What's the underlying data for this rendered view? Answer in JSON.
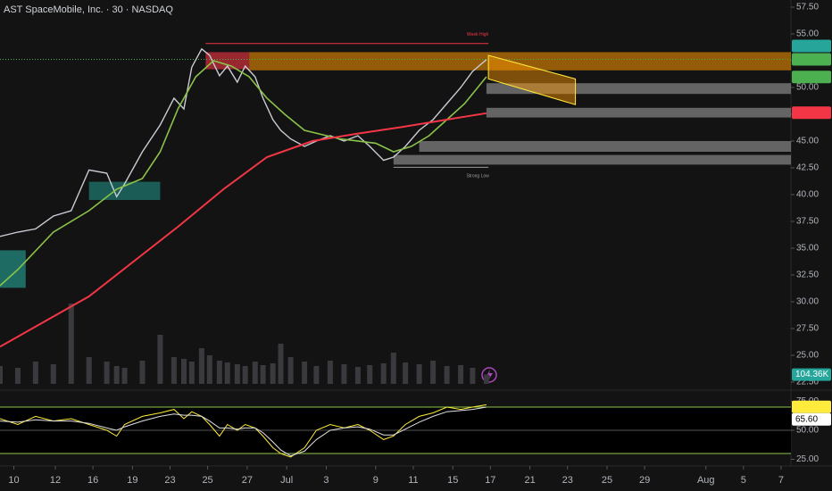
{
  "header": {
    "title": "AST SpaceMobile, Inc. · 30 · NASDAQ"
  },
  "chart_data": {
    "type": "line",
    "xlim": [
      0,
      40
    ],
    "ylim": [
      22.5,
      57.5
    ],
    "grid": false,
    "yticks": [
      {
        "value": 57.5,
        "label": "57.50"
      },
      {
        "value": 55,
        "label": "55.00"
      },
      {
        "value": 52.5,
        "label": "52.50"
      },
      {
        "value": 50,
        "label": "50.00"
      },
      {
        "value": 47.5,
        "label": "47.50"
      },
      {
        "value": 45,
        "label": "45.00"
      },
      {
        "value": 42.5,
        "label": "42.50"
      },
      {
        "value": 40,
        "label": "40.00"
      },
      {
        "value": 37.5,
        "label": "37.50"
      },
      {
        "value": 35,
        "label": "35.00"
      },
      {
        "value": 32.5,
        "label": "32.50"
      },
      {
        "value": 30,
        "label": "30.00"
      },
      {
        "value": 27.5,
        "label": "27.50"
      },
      {
        "value": 25,
        "label": "25.00"
      },
      {
        "value": 22.5,
        "label": "22.50"
      }
    ],
    "xticks": [
      {
        "value": 0.7,
        "label": "10"
      },
      {
        "value": 2.8,
        "label": "12"
      },
      {
        "value": 4.7,
        "label": "16"
      },
      {
        "value": 6.7,
        "label": "19"
      },
      {
        "value": 8.6,
        "label": "23"
      },
      {
        "value": 10.5,
        "label": "25"
      },
      {
        "value": 12.5,
        "label": "27"
      },
      {
        "value": 14.5,
        "label": "Jul"
      },
      {
        "value": 16.5,
        "label": "3"
      },
      {
        "value": 19,
        "label": "9"
      },
      {
        "value": 20.9,
        "label": "11"
      },
      {
        "value": 22.9,
        "label": "15"
      },
      {
        "value": 24.8,
        "label": "17"
      },
      {
        "value": 26.8,
        "label": "21"
      },
      {
        "value": 28.7,
        "label": "23"
      },
      {
        "value": 30.7,
        "label": "25"
      },
      {
        "value": 32.6,
        "label": "29"
      },
      {
        "value": 35.7,
        "label": "Aug"
      },
      {
        "value": 37.6,
        "label": "5"
      },
      {
        "value": 39.5,
        "label": "7"
      }
    ],
    "series": [
      {
        "color": "#c9ccd4",
        "width": 1.4,
        "x": [
          0,
          0.9,
          1.8,
          2.7,
          3.6,
          4.5,
          5.4,
          5.9,
          6.3,
          7.2,
          8.1,
          8.8,
          9.3,
          9.7,
          10.2,
          10.6,
          11.1,
          11.5,
          12.0,
          12.4,
          12.9,
          13.3,
          13.8,
          14.2,
          14.7,
          15.4,
          16.0,
          16.7,
          17.4,
          18.1,
          18.7,
          19.4,
          19.9,
          20.5,
          21.2,
          21.9,
          22.6,
          23.3,
          23.9,
          24.6
        ],
        "values": [
          36.1,
          36.5,
          36.8,
          38,
          38.5,
          42.3,
          42,
          39.8,
          41,
          44,
          46.5,
          49,
          48,
          51.9,
          53.6,
          53,
          51.1,
          52,
          50.5,
          52,
          51,
          49,
          47,
          46,
          45.2,
          44.5,
          45,
          45.5,
          45,
          45.5,
          44.5,
          43.2,
          43.5,
          44.5,
          46,
          47,
          48.5,
          50,
          51.5,
          52.6
        ]
      },
      {
        "color": "#8bc34a",
        "width": 1.6,
        "x": [
          0,
          0.9,
          2.7,
          4.5,
          5.9,
          7.2,
          8.1,
          9.0,
          9.9,
          10.8,
          11.7,
          12.6,
          13.5,
          14.4,
          15.4,
          17.2,
          19.0,
          19.9,
          20.8,
          21.7,
          22.6,
          23.5,
          24.6
        ],
        "values": [
          31.5,
          33,
          36.5,
          38.5,
          40.5,
          41.5,
          44,
          48,
          51,
          52.5,
          52,
          51,
          49,
          47.5,
          46,
          45.2,
          44.8,
          44,
          44.5,
          45.5,
          47,
          48.5,
          51
        ]
      },
      {
        "color": "#f23645",
        "width": 2,
        "x": [
          0,
          4.5,
          9.0,
          11.3,
          13.5,
          15.8,
          18.1,
          20.3,
          22.6,
          24.6
        ],
        "values": [
          25.8,
          30.5,
          37,
          40.5,
          43.5,
          45,
          45.7,
          46.3,
          47,
          47.6
        ]
      }
    ],
    "zones": [
      {
        "low": 51.6,
        "high": 53.3,
        "x0": 12.6,
        "color": "rgba(255,152,0,0.55)"
      },
      {
        "low": 51.7,
        "high": 53.3,
        "x0": 10.4,
        "x1": 12.6,
        "color": "rgba(242,54,69,0.6)"
      },
      {
        "low": 49.4,
        "high": 50.4,
        "x0": 24.6,
        "color": "rgba(200,200,200,0.45)"
      },
      {
        "low": 47.2,
        "high": 48.1,
        "x0": 24.6,
        "color": "rgba(200,200,200,0.45)"
      },
      {
        "low": 44.0,
        "high": 45.0,
        "x0": 21.2,
        "color": "rgba(200,200,200,0.45)"
      },
      {
        "low": 42.8,
        "high": 43.7,
        "x0": 19.9,
        "color": "rgba(200,200,200,0.45)"
      },
      {
        "low": 31.3,
        "high": 34.8,
        "x0": 0,
        "x1": 1.3,
        "color": "rgba(38,166,154,0.6)"
      },
      {
        "low": 39.5,
        "high": 41.2,
        "x0": 4.5,
        "x1": 8.1,
        "color": "rgba(38,166,154,0.5)"
      }
    ],
    "levels": [
      {
        "value": 54.1,
        "x0": 10.4,
        "x1": 24.7,
        "color": "#f23645",
        "text": "Week High",
        "above": true
      },
      {
        "value": 42.55,
        "x0": 19.9,
        "x1": 24.7,
        "color": "#9e9e9e",
        "text": "Strong Low",
        "above": false
      }
    ],
    "current": {
      "value": 52.63,
      "color": "#4caf50"
    },
    "channel": {
      "x": [
        24.7,
        29.1
      ],
      "upper": [
        53,
        50.8
      ],
      "lower": [
        50.8,
        48.4
      ],
      "fill": "rgba(255,152,0,0.45)",
      "stroke": "#ffeb3b"
    },
    "price_labels": [
      {
        "value": 52.63,
        "color": "#4caf50",
        "text_color": "#000"
      },
      {
        "value": 52.63,
        "color": "#26a69a",
        "text_color": "#fff"
      },
      {
        "value": 50.98,
        "color": "#4caf50",
        "text_color": "#000"
      },
      {
        "value": 47.65,
        "color": "#f23645",
        "text_color": "#fff"
      }
    ],
    "volume": {
      "ylim": [
        0,
        1000
      ],
      "color": "#3a3a3e",
      "x": [
        0,
        0.9,
        1.8,
        2.7,
        3.6,
        4.5,
        5.4,
        5.9,
        6.3,
        7.2,
        8.1,
        8.8,
        9.3,
        9.7,
        10.2,
        10.6,
        11.1,
        11.5,
        12.0,
        12.4,
        12.9,
        13.3,
        13.8,
        14.2,
        14.7,
        15.4,
        16.0,
        16.7,
        17.4,
        18.1,
        18.7,
        19.4,
        19.9,
        20.5,
        21.2,
        21.9,
        22.6,
        23.3,
        23.9,
        24.6
      ],
      "values": [
        200,
        180,
        250,
        220,
        900,
        300,
        250,
        200,
        180,
        260,
        550,
        300,
        280,
        250,
        400,
        320,
        260,
        240,
        220,
        200,
        250,
        210,
        230,
        450,
        300,
        250,
        200,
        260,
        220,
        190,
        210,
        230,
        350,
        240,
        220,
        260,
        200,
        210,
        180,
        104.36
      ],
      "last": {
        "value": 104.36,
        "label": "104.36K",
        "color": "#26a69a"
      }
    },
    "rsi": {
      "ylim": [
        20,
        80
      ],
      "yticks": [
        {
          "value": 75,
          "label": "75.00"
        },
        {
          "value": 50,
          "label": "50.00"
        },
        {
          "value": 25,
          "label": "25.00"
        }
      ],
      "levels": [
        70,
        50,
        30
      ],
      "series": [
        {
          "color": "#ffeb3b",
          "x": [
            0,
            0.9,
            1.8,
            2.7,
            3.6,
            4.5,
            5.4,
            5.9,
            6.3,
            7.2,
            8.1,
            8.8,
            9.3,
            9.7,
            10.2,
            10.6,
            11.1,
            11.5,
            12.0,
            12.4,
            12.9,
            13.3,
            13.8,
            14.2,
            14.7,
            15.4,
            16.0,
            16.7,
            17.4,
            18.1,
            18.7,
            19.4,
            19.9,
            20.5,
            21.2,
            21.9,
            22.6,
            23.3,
            23.9,
            24.6
          ],
          "values": [
            60,
            55,
            62,
            58,
            60,
            55,
            50,
            45,
            55,
            62,
            65,
            68,
            60,
            66,
            62,
            55,
            45,
            55,
            50,
            55,
            52,
            45,
            35,
            30,
            27,
            35,
            50,
            55,
            52,
            55,
            50,
            42,
            45,
            55,
            62,
            65,
            70,
            68,
            70,
            72
          ]
        },
        {
          "color": "#e0e0e0",
          "x": [
            0,
            0.9,
            1.8,
            2.7,
            3.6,
            4.5,
            5.4,
            5.9,
            6.3,
            7.2,
            8.1,
            8.8,
            9.3,
            9.7,
            10.2,
            10.6,
            11.1,
            11.5,
            12.0,
            12.4,
            12.9,
            13.3,
            13.8,
            14.2,
            14.7,
            15.4,
            16.0,
            16.7,
            17.4,
            18.1,
            18.7,
            19.4,
            19.9,
            20.5,
            21.2,
            21.9,
            22.6,
            23.3,
            23.9,
            24.6
          ],
          "values": [
            58,
            57,
            59,
            58,
            58,
            56,
            52,
            50,
            53,
            58,
            62,
            64,
            63,
            63,
            62,
            58,
            52,
            52,
            51,
            52,
            52,
            48,
            40,
            33,
            28,
            32,
            42,
            50,
            52,
            53,
            51,
            46,
            46,
            51,
            57,
            62,
            66,
            67,
            68,
            70
          ]
        }
      ],
      "labels": [
        {
          "value": 70.19,
          "color": "#ffeb3b",
          "text_color": "#000"
        },
        {
          "value": 65.6,
          "label": "65.60",
          "color": "#ffffff",
          "text_color": "#000"
        }
      ]
    }
  }
}
